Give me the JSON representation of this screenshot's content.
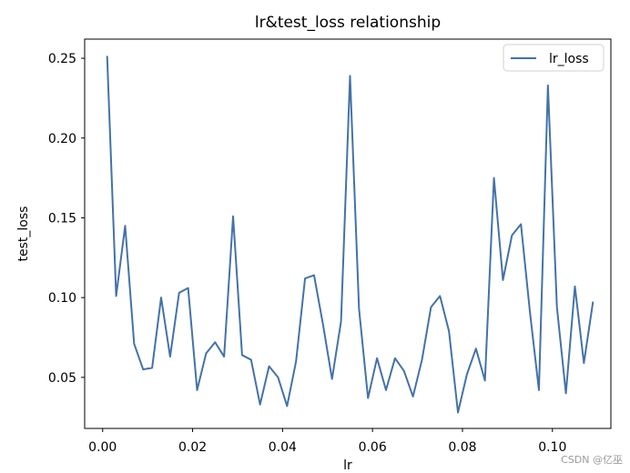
{
  "chart_data": {
    "type": "line",
    "title": "lr&test_loss relationship",
    "xlabel": "lr",
    "ylabel": "test_loss",
    "xlim": [
      -0.004,
      0.113
    ],
    "ylim": [
      0.018,
      0.262
    ],
    "xticks": [
      0.0,
      0.02,
      0.04,
      0.06,
      0.08,
      0.1
    ],
    "xtick_labels": [
      "0.00",
      "0.02",
      "0.04",
      "0.06",
      "0.08",
      "0.10"
    ],
    "yticks": [
      0.05,
      0.1,
      0.15,
      0.2,
      0.25
    ],
    "ytick_labels": [
      "0.05",
      "0.10",
      "0.15",
      "0.20",
      "0.25"
    ],
    "grid": false,
    "legend_position": "top-right",
    "series": [
      {
        "name": "lr_loss",
        "color": "#4472a8",
        "x": [
          0.001,
          0.003,
          0.005,
          0.007,
          0.009,
          0.011,
          0.013,
          0.015,
          0.017,
          0.019,
          0.021,
          0.023,
          0.025,
          0.027,
          0.029,
          0.031,
          0.033,
          0.035,
          0.037,
          0.039,
          0.041,
          0.043,
          0.045,
          0.047,
          0.049,
          0.051,
          0.053,
          0.055,
          0.057,
          0.059,
          0.061,
          0.063,
          0.065,
          0.067,
          0.069,
          0.071,
          0.073,
          0.075,
          0.077,
          0.079,
          0.081,
          0.083,
          0.085,
          0.087,
          0.089,
          0.091,
          0.093,
          0.095,
          0.097,
          0.099,
          0.101,
          0.103,
          0.105,
          0.107,
          0.109
        ],
        "y": [
          0.251,
          0.101,
          0.145,
          0.071,
          0.055,
          0.056,
          0.1,
          0.063,
          0.103,
          0.106,
          0.042,
          0.065,
          0.072,
          0.063,
          0.151,
          0.064,
          0.061,
          0.033,
          0.057,
          0.05,
          0.032,
          0.06,
          0.112,
          0.114,
          0.083,
          0.049,
          0.085,
          0.239,
          0.093,
          0.037,
          0.062,
          0.042,
          0.062,
          0.054,
          0.038,
          0.061,
          0.094,
          0.101,
          0.079,
          0.028,
          0.052,
          0.068,
          0.048,
          0.175,
          0.111,
          0.139,
          0.146,
          0.091,
          0.042,
          0.233,
          0.094,
          0.04,
          0.107,
          0.059,
          0.097
        ]
      }
    ]
  },
  "watermark": "CSDN @亿巫"
}
